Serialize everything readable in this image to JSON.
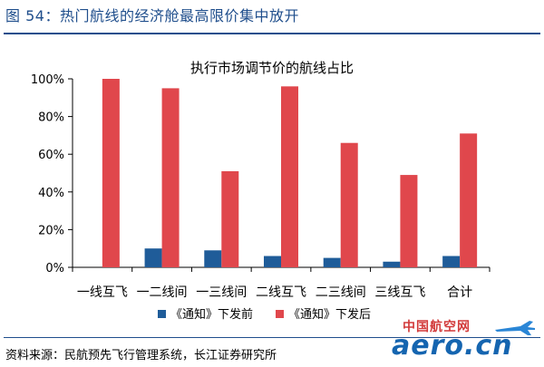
{
  "header": {
    "title": "图 54：热门航线的经济舱最高限价集中放开"
  },
  "footer": {
    "source": "资料来源：民航预先飞行管理系统，长江证券研究所"
  },
  "watermark": {
    "cn": "中国航空网",
    "en": "aero.cn"
  },
  "colors": {
    "series_before": "#1f5c99",
    "series_after": "#e0474c",
    "accent": "#1f4e8c"
  },
  "chart_data": {
    "type": "bar",
    "title": "执行市场调节价的航线占比",
    "categories": [
      "一线互飞",
      "一二线间",
      "一三线间",
      "二线互飞",
      "二三线间",
      "三线互飞",
      "合计"
    ],
    "series": [
      {
        "name": "《通知》下发前",
        "values": [
          0,
          10,
          9,
          6,
          5,
          3,
          6
        ]
      },
      {
        "name": "《通知》下发后",
        "values": [
          100,
          95,
          51,
          96,
          66,
          49,
          71
        ]
      }
    ],
    "ylim": [
      0,
      100
    ],
    "yticks": [
      "0%",
      "20%",
      "40%",
      "60%",
      "80%",
      "100%"
    ],
    "ytick_values": [
      0,
      20,
      40,
      60,
      80,
      100
    ],
    "grid": false,
    "legend_position": "bottom"
  }
}
